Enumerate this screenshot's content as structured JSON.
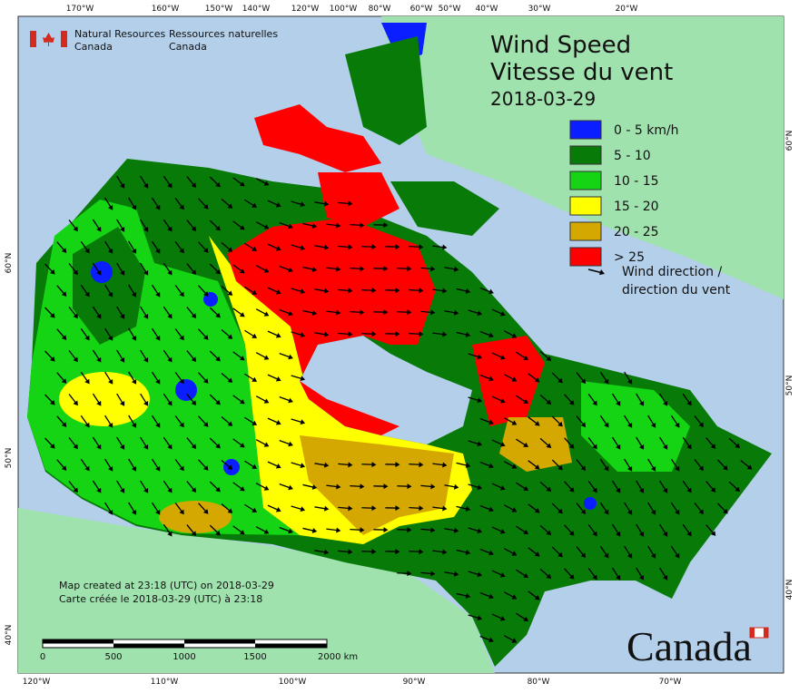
{
  "header": {
    "org_en": [
      "Natural Resources",
      "Canada"
    ],
    "org_fr": [
      "Ressources naturelles",
      "Canada"
    ]
  },
  "title": [
    "Wind Speed",
    "Vitesse du vent"
  ],
  "date": "2018-03-29",
  "legend": {
    "items": [
      {
        "label": "0 - 5 km/h",
        "color": "#0a1eff"
      },
      {
        "label": "5 - 10",
        "color": "#087a08"
      },
      {
        "label": "10 - 15",
        "color": "#14d414"
      },
      {
        "label": "15 - 20",
        "color": "#ffff00"
      },
      {
        "label": "20 - 25",
        "color": "#d4a800"
      },
      {
        "label": "> 25",
        "color": "#ff0000"
      }
    ],
    "direction": [
      "Wind direction /",
      "direction du vent"
    ]
  },
  "footer": [
    "Map created at 23:18 (UTC) on 2018-03-29",
    "Carte créée le 2018-03-29 (UTC) à 23:18"
  ],
  "scale_bar": [
    "0",
    "500",
    "1000",
    "1500",
    "2000  km"
  ],
  "wordmark": "Canada",
  "graticule": {
    "top": [
      "170°W",
      "160°W",
      "150°W",
      "140°W",
      "120°W",
      "100°W",
      "80°W",
      "60°W",
      "50°W",
      "40°W",
      "30°W",
      "20°W"
    ],
    "bottom": [
      "120°W",
      "110°W",
      "100°W",
      "90°W",
      "80°W",
      "70°W"
    ],
    "left": [
      "60°N",
      "50°N",
      "40°N"
    ],
    "right": [
      "60°N",
      "50°N",
      "40°N"
    ]
  }
}
